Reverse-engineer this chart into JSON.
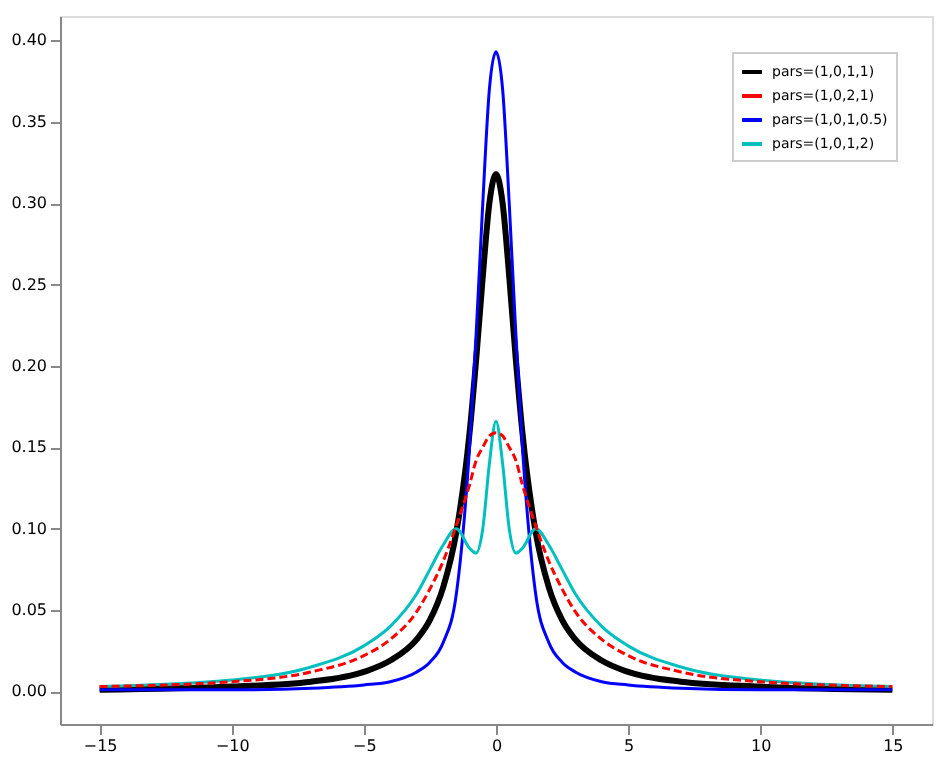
{
  "chart_data": {
    "type": "line",
    "x": [
      -15,
      -10,
      -7,
      -5,
      -4,
      -3,
      -2.5,
      -2,
      -1.5,
      -1,
      -0.75,
      -0.5,
      -0.25,
      0,
      0.25,
      0.5,
      0.75,
      1,
      1.5,
      2,
      2.5,
      3,
      4,
      5,
      7,
      10,
      15
    ],
    "series": [
      {
        "name": "pars=(1,0,1,1)",
        "color": "#000000",
        "values": [
          0.001,
          0.003,
          0.006,
          0.012,
          0.019,
          0.032,
          0.044,
          0.064,
          0.098,
          0.159,
          0.204,
          0.255,
          0.3,
          0.318,
          0.3,
          0.255,
          0.204,
          0.159,
          0.098,
          0.064,
          0.044,
          0.032,
          0.019,
          0.012,
          0.006,
          0.003,
          0.001
        ]
      },
      {
        "name": "pars=(1,0,2,1)",
        "color": "#ff0000",
        "line_style": "dashed",
        "values": [
          0.003,
          0.006,
          0.012,
          0.022,
          0.032,
          0.049,
          0.063,
          0.08,
          0.102,
          0.127,
          0.142,
          0.15,
          0.157,
          0.159,
          0.157,
          0.15,
          0.142,
          0.127,
          0.102,
          0.08,
          0.063,
          0.049,
          0.032,
          0.022,
          0.012,
          0.006,
          0.003
        ]
      },
      {
        "name": "pars=(1,0,1,0.5)",
        "color": "#0000ff",
        "values": [
          0.001,
          0.001,
          0.002,
          0.004,
          0.006,
          0.012,
          0.018,
          0.03,
          0.06,
          0.15,
          0.22,
          0.3,
          0.37,
          0.393,
          0.37,
          0.3,
          0.22,
          0.15,
          0.06,
          0.03,
          0.018,
          0.012,
          0.006,
          0.004,
          0.002,
          0.001,
          0.001
        ]
      },
      {
        "name": "pars=(1,0,1,2)",
        "color": "#00bfbf",
        "values": [
          0.003,
          0.007,
          0.015,
          0.028,
          0.04,
          0.06,
          0.075,
          0.09,
          0.1,
          0.088,
          0.085,
          0.1,
          0.14,
          0.166,
          0.14,
          0.1,
          0.085,
          0.088,
          0.1,
          0.09,
          0.075,
          0.06,
          0.04,
          0.028,
          0.015,
          0.007,
          0.003
        ]
      }
    ],
    "xlim": [
      -16.5,
      16.5
    ],
    "ylim": [
      -0.02,
      0.415
    ],
    "xticks": [
      {
        "value": -15,
        "label": "−15"
      },
      {
        "value": -10,
        "label": "−10"
      },
      {
        "value": -5,
        "label": "−5"
      },
      0,
      5,
      10,
      15
    ],
    "yticks": [
      {
        "value": 0,
        "label": "0.00"
      },
      {
        "value": 0.05,
        "label": "0.05"
      },
      {
        "value": 0.1,
        "label": "0.10"
      },
      {
        "value": 0.15,
        "label": "0.15"
      },
      {
        "value": 0.2,
        "label": "0.20"
      },
      {
        "value": 0.25,
        "label": "0.25"
      },
      {
        "value": 0.3,
        "label": "0.30"
      },
      {
        "value": 0.35,
        "label": "0.35"
      },
      {
        "value": 0.4,
        "label": "0.40"
      }
    ],
    "legend": "top right",
    "grid": false
  }
}
